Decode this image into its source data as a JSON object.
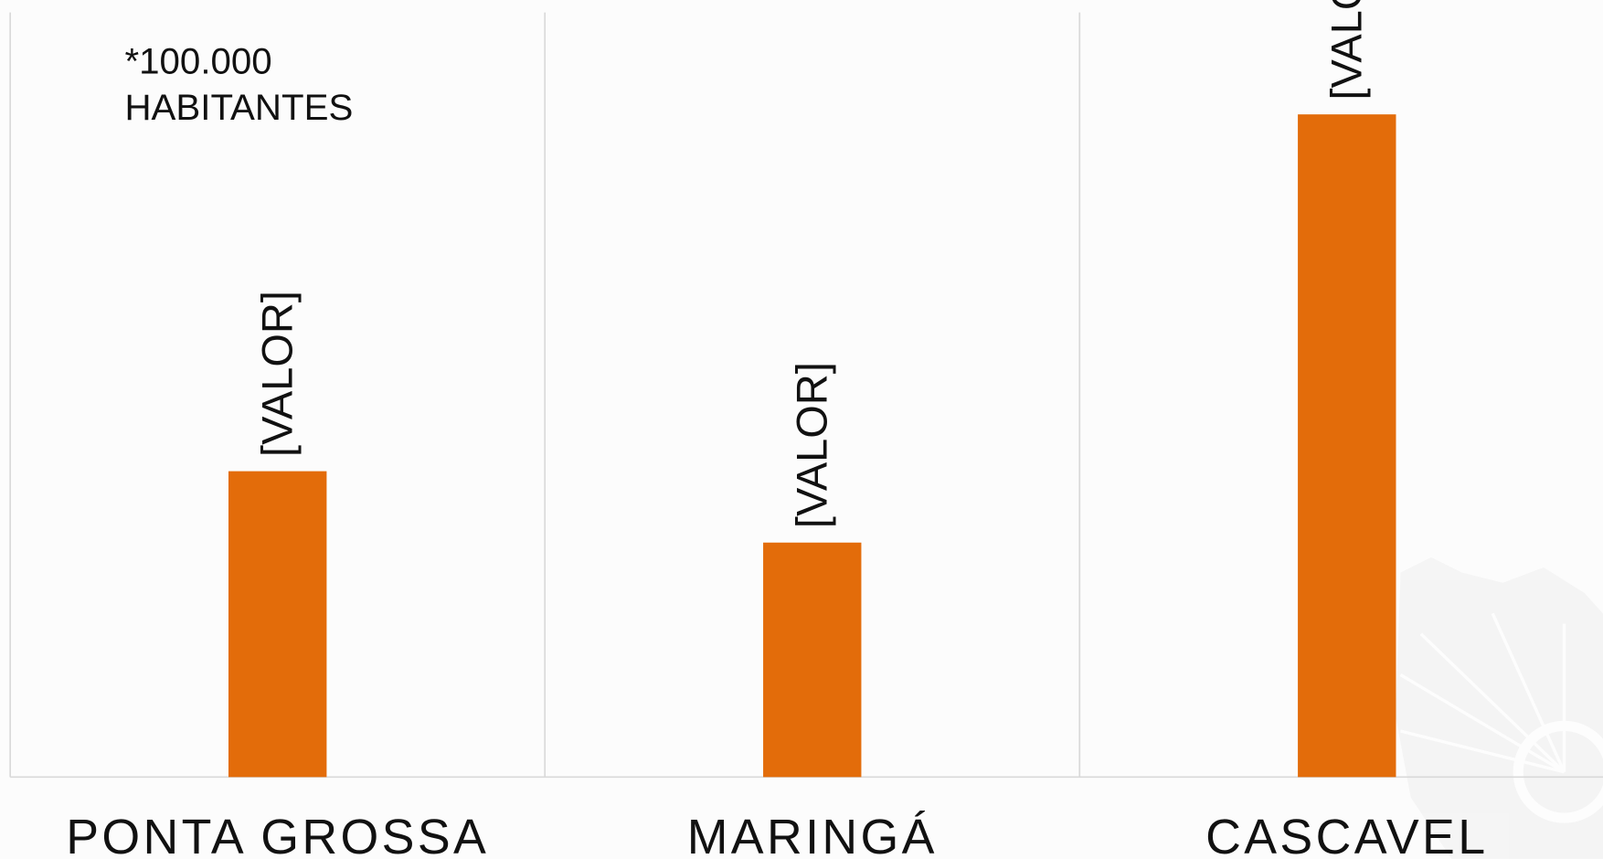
{
  "chart_data": {
    "type": "bar",
    "annotation": [
      "*100.000",
      "HABITANTES"
    ],
    "categories": [
      "PONTA GROSSA",
      "MARINGÁ",
      "CASCAVEL"
    ],
    "values": [
      3.0,
      2.3,
      6.5
    ],
    "value_labels": [
      "[VALOR]",
      "[VALOR]",
      "[VALOR]"
    ],
    "color": "#e36c0a",
    "ylim": [
      0,
      7.5
    ]
  }
}
